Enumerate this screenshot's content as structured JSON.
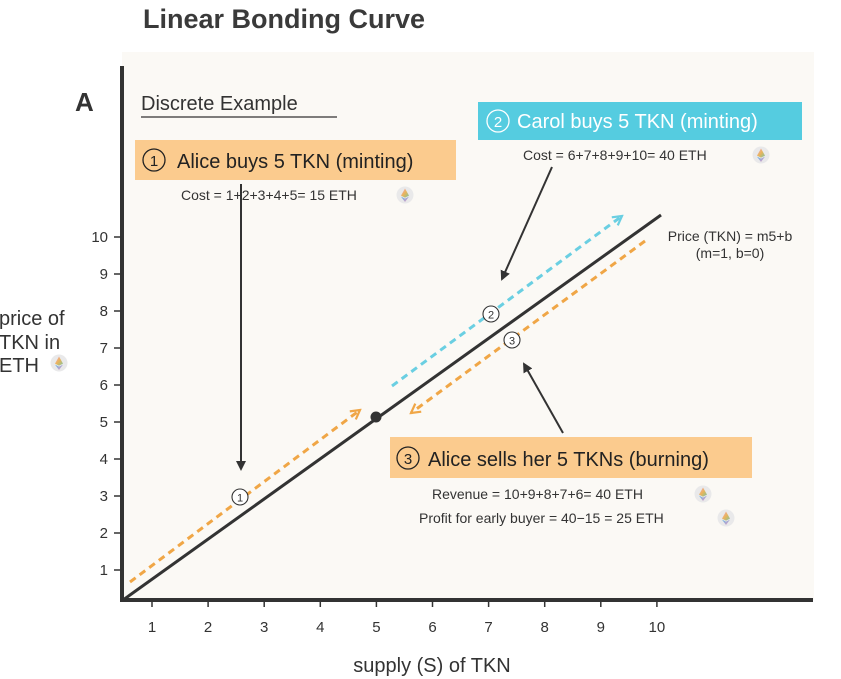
{
  "title": "Linear Bonding Curve",
  "panel_letter": "A",
  "panel_subtitle": "Discrete Example",
  "axes": {
    "x_label": "supply (S) of TKN",
    "y_label_lines": [
      "price of",
      "TKN in",
      "ETH"
    ],
    "x_ticks": [
      "1",
      "2",
      "3",
      "4",
      "5",
      "6",
      "7",
      "8",
      "9",
      "10"
    ],
    "y_ticks": [
      "1",
      "2",
      "3",
      "4",
      "5",
      "6",
      "7",
      "8",
      "9",
      "10"
    ]
  },
  "formula": {
    "line1": "Price (TKN) = m5+b",
    "line2": "(m=1, b=0)"
  },
  "steps": [
    {
      "number": "1",
      "marker": "①",
      "label": "Alice buys 5 TKN (minting)",
      "detail": "Cost = 1+2+3+4+5= 15 ETH",
      "color": "#fbcb8e",
      "text_color": "#222222"
    },
    {
      "number": "2",
      "marker": "②",
      "label": "Carol buys 5 TKN (minting)",
      "detail": "Cost = 6+7+8+9+10= 40 ETH",
      "color": "#55cce0",
      "text_color": "#ffffff"
    },
    {
      "number": "3",
      "marker": "③",
      "label": "Alice sells her 5 TKNs (burning)",
      "detail": "Revenue = 10+9+8+7+6= 40 ETH",
      "detail2": "Profit for early buyer = 40−15 = 25 ETH",
      "color": "#fbcb8e",
      "text_color": "#222222"
    }
  ],
  "colors": {
    "background_panel": "#fbf9f5",
    "curve": "#333333",
    "orange_arrow": "#f0a646",
    "blue_arrow": "#6acfe2"
  },
  "icons": [
    "ethereum-icon"
  ]
}
